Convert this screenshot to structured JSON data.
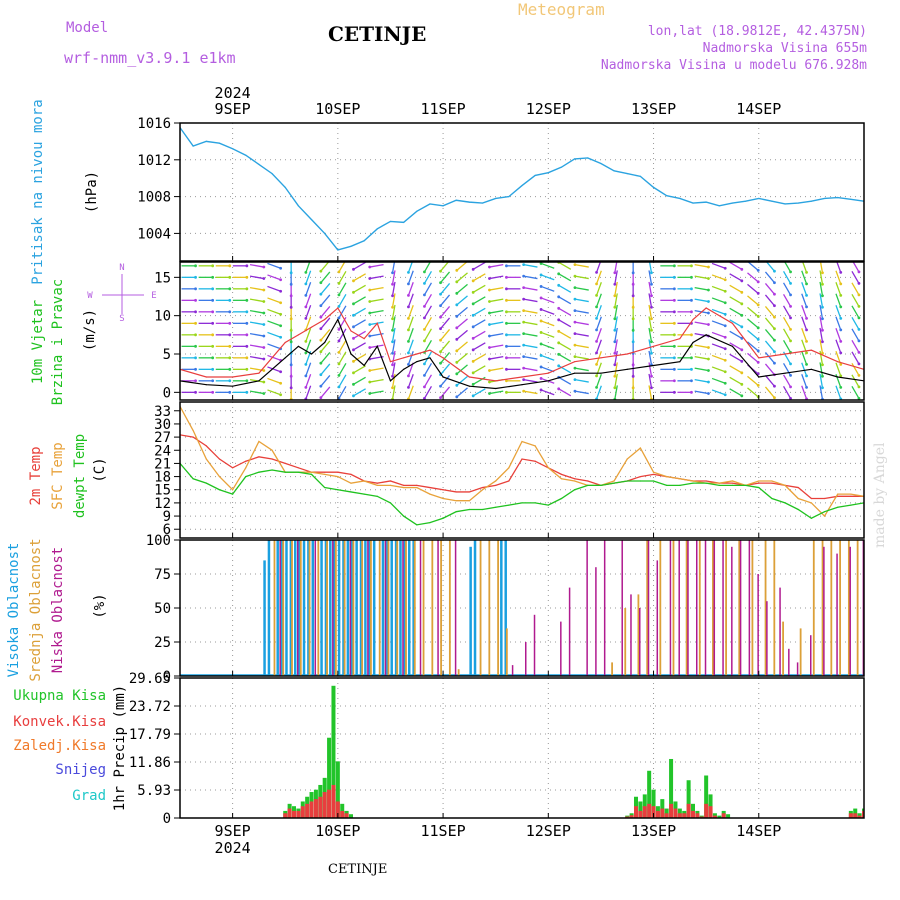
{
  "header": {
    "model_label": "Model",
    "model_name": "wrf-nmm_v3.9.1 e1km",
    "location": "CETINJE",
    "product": "Meteogram",
    "coords": "lon,lat (18.9812E, 42.4375N)",
    "elevation": "Nadmorska Visina 655m",
    "model_elevation": "Nadmorska Visina u modelu 676.928m"
  },
  "footer": {
    "location": "CETINJE",
    "watermark": "made by Angel"
  },
  "time_axis": {
    "year": "2024",
    "days": [
      "9SEP",
      "10SEP",
      "11SEP",
      "12SEP",
      "13SEP",
      "14SEP"
    ],
    "start_hour_before_first_day": 12,
    "hours_total": 156
  },
  "colors": {
    "pressure": "#2ba3e0",
    "wind_speed": "#000000",
    "gust": "#e83e3e",
    "t2m": "#e8403a",
    "tsfc": "#e8a23a",
    "dewpt": "#1fc21f",
    "cloud_high": "#1aa0e0",
    "cloud_mid": "#dca038",
    "cloud_low": "#b01a8f",
    "precip_total": "#22c42a",
    "precip_conv": "#e83e3e",
    "precip_frz": "#f07a2a",
    "snow": "#4a4adc",
    "graupel": "#1ec8c8"
  },
  "chart_data": [
    {
      "type": "line",
      "name": "pressure",
      "ylabel": [
        "Pritisak na nivou mora",
        "(hPa)"
      ],
      "yticks": [
        1004,
        1008,
        1012,
        1016
      ],
      "ylim": [
        1001,
        1016
      ],
      "x_hours": [
        0,
        3,
        6,
        9,
        12,
        15,
        18,
        21,
        24,
        27,
        30,
        33,
        36,
        39,
        42,
        45,
        48,
        51,
        54,
        57,
        60,
        63,
        66,
        69,
        72,
        75,
        78,
        81,
        84,
        87,
        90,
        93,
        96,
        99,
        102,
        105,
        108,
        111,
        114,
        117,
        120,
        123,
        126,
        129,
        132,
        135,
        138,
        141,
        144,
        147,
        150,
        153,
        156
      ],
      "values": [
        1015.5,
        1013.5,
        1014.0,
        1013.8,
        1013.2,
        1012.5,
        1011.5,
        1010.5,
        1009.0,
        1007.0,
        1005.5,
        1004.0,
        1002.2,
        1002.6,
        1003.2,
        1004.5,
        1005.3,
        1005.2,
        1006.4,
        1007.2,
        1007.0,
        1007.6,
        1007.4,
        1007.3,
        1007.8,
        1008.0,
        1009.2,
        1010.3,
        1010.6,
        1011.2,
        1012.1,
        1012.2,
        1011.6,
        1010.8,
        1010.5,
        1010.2,
        1009.0,
        1008.1,
        1007.8,
        1007.3,
        1007.4,
        1007.0,
        1007.3,
        1007.5,
        1007.8,
        1007.5,
        1007.2,
        1007.3,
        1007.5,
        1007.8,
        1007.9,
        1007.7,
        1007.5
      ]
    },
    {
      "type": "line",
      "name": "wind",
      "ylabel": [
        "10m Vjetar",
        "Brzina i Pravac",
        "(m/s)"
      ],
      "compass": [
        "N",
        "S",
        "W",
        "E"
      ],
      "yticks": [
        0,
        5,
        10,
        15
      ],
      "ylim": [
        -1,
        17
      ],
      "series": [
        {
          "key": "speed",
          "x_hours": [
            0,
            6,
            12,
            18,
            24,
            27,
            30,
            33,
            36,
            39,
            42,
            45,
            48,
            51,
            54,
            57,
            60,
            66,
            72,
            78,
            84,
            90,
            96,
            102,
            108,
            114,
            117,
            120,
            126,
            132,
            138,
            144,
            150,
            156
          ],
          "values": [
            1.5,
            1.0,
            0.8,
            1.5,
            4.5,
            6.0,
            5.0,
            6.5,
            9.5,
            5.0,
            3.5,
            6.0,
            1.5,
            3.0,
            4.0,
            4.5,
            2.0,
            0.8,
            0.5,
            1.0,
            1.5,
            2.5,
            2.5,
            3.0,
            3.5,
            4.0,
            6.5,
            7.5,
            6.0,
            2.0,
            2.5,
            3.0,
            2.0,
            1.5
          ]
        },
        {
          "key": "gust",
          "x_hours": [
            0,
            6,
            12,
            18,
            24,
            27,
            30,
            33,
            36,
            39,
            42,
            45,
            48,
            51,
            54,
            57,
            60,
            66,
            72,
            78,
            84,
            90,
            96,
            102,
            108,
            114,
            117,
            120,
            126,
            132,
            138,
            144,
            150,
            156
          ],
          "values": [
            3.0,
            2.0,
            2.0,
            2.5,
            6.5,
            7.5,
            8.5,
            9.5,
            11.0,
            8.0,
            7.0,
            9.0,
            4.0,
            4.5,
            5.0,
            5.5,
            4.5,
            2.0,
            1.5,
            2.0,
            2.5,
            4.0,
            4.5,
            5.0,
            6.0,
            7.0,
            9.5,
            11.0,
            9.0,
            4.5,
            5.0,
            5.5,
            4.0,
            3.0
          ]
        }
      ],
      "arrow_dirs_deg": [
        90,
        90,
        90,
        90,
        100,
        110,
        180,
        200,
        220,
        210,
        240,
        260,
        190,
        200,
        210,
        220,
        230,
        240,
        260,
        270,
        280,
        290,
        300,
        280,
        200,
        190,
        180,
        170,
        90,
        90,
        100,
        110,
        120,
        130,
        140,
        150,
        160,
        170,
        160,
        150
      ]
    },
    {
      "type": "line",
      "name": "temperature",
      "ylabel": [
        "2m Temp",
        "SFC Temp",
        "dewpt Temp",
        "(C)"
      ],
      "yticks": [
        6,
        9,
        12,
        15,
        18,
        21,
        24,
        27,
        30,
        33
      ],
      "ylim": [
        4,
        35
      ],
      "x_hours": [
        0,
        3,
        6,
        9,
        12,
        15,
        18,
        21,
        24,
        27,
        30,
        33,
        36,
        39,
        42,
        45,
        48,
        51,
        54,
        57,
        60,
        63,
        66,
        69,
        72,
        75,
        78,
        81,
        84,
        87,
        90,
        93,
        96,
        99,
        102,
        105,
        108,
        111,
        114,
        117,
        120,
        123,
        126,
        129,
        132,
        135,
        138,
        141,
        144,
        147,
        150,
        153,
        156
      ],
      "series": [
        {
          "key": "t2m",
          "values": [
            27.5,
            27.0,
            25.0,
            22.0,
            20.0,
            21.5,
            22.5,
            22.0,
            21.0,
            20.0,
            19.0,
            19.0,
            19.0,
            18.5,
            17.0,
            16.5,
            17.0,
            16.0,
            16.0,
            15.5,
            15.0,
            14.5,
            14.5,
            15.5,
            16.0,
            17.0,
            22.0,
            21.5,
            20.0,
            18.5,
            17.5,
            17.0,
            16.0,
            16.5,
            17.0,
            18.0,
            18.5,
            18.0,
            17.5,
            17.0,
            17.0,
            16.5,
            16.5,
            16.0,
            16.5,
            16.5,
            16.0,
            15.5,
            13.0,
            13.0,
            13.5,
            13.5,
            13.5
          ]
        },
        {
          "key": "tsfc",
          "values": [
            34.0,
            28.5,
            22.0,
            18.0,
            15.0,
            20.0,
            26.0,
            24.0,
            19.0,
            19.0,
            19.0,
            18.5,
            18.0,
            16.5,
            17.0,
            16.0,
            16.0,
            15.5,
            15.5,
            14.0,
            13.0,
            12.5,
            12.5,
            15.0,
            17.0,
            20.0,
            26.0,
            25.0,
            20.0,
            17.5,
            17.0,
            16.0,
            16.0,
            17.0,
            22.0,
            24.5,
            19.0,
            18.0,
            17.5,
            17.0,
            16.5,
            16.5,
            17.0,
            16.0,
            17.0,
            17.0,
            16.0,
            13.0,
            12.0,
            9.0,
            14.0,
            14.0,
            13.5
          ]
        },
        {
          "key": "dewpt",
          "values": [
            21.0,
            17.5,
            16.5,
            15.0,
            14.0,
            18.0,
            19.0,
            19.5,
            19.0,
            19.0,
            18.5,
            15.5,
            15.0,
            14.5,
            14.0,
            13.5,
            12.0,
            9.0,
            7.0,
            7.5,
            8.5,
            10.0,
            10.5,
            10.5,
            11.0,
            11.5,
            12.0,
            12.0,
            11.5,
            13.0,
            15.0,
            16.0,
            16.0,
            16.5,
            17.0,
            17.0,
            17.0,
            16.0,
            16.0,
            16.5,
            16.5,
            16.0,
            16.0,
            16.0,
            15.5,
            13.0,
            12.0,
            10.5,
            8.5,
            10.0,
            11.0,
            11.5,
            12.0
          ]
        }
      ]
    },
    {
      "type": "bar",
      "name": "cloud",
      "ylabel": [
        "Visoka Oblacnost",
        "Srednja Oblacnost",
        "Niska Oblacnost",
        "(%)"
      ],
      "yticks": [
        0,
        25,
        50,
        75,
        100
      ],
      "ylim": [
        0,
        100
      ],
      "series": [
        {
          "key": "high",
          "x_hours": [
            19,
            20,
            22,
            23,
            24,
            25,
            26,
            27,
            28,
            29,
            30,
            32,
            33,
            34,
            35,
            36,
            37,
            38,
            39,
            40,
            41,
            42,
            43,
            44,
            46,
            47,
            48,
            49,
            50,
            51,
            52,
            53,
            66,
            67,
            73,
            74
          ],
          "values": [
            85,
            100,
            100,
            100,
            100,
            100,
            100,
            100,
            100,
            100,
            100,
            100,
            100,
            100,
            100,
            100,
            100,
            100,
            100,
            100,
            100,
            100,
            100,
            100,
            100,
            100,
            100,
            100,
            100,
            100,
            100,
            100,
            95,
            100,
            100,
            100
          ]
        },
        {
          "key": "mid",
          "x_hours": [
            21,
            23,
            25,
            27,
            29,
            31,
            33,
            35,
            37,
            39,
            41,
            43,
            45,
            47,
            49,
            51,
            53,
            55,
            57,
            59,
            61,
            63,
            68,
            70,
            72,
            74,
            98,
            101,
            104,
            106,
            109,
            112,
            115,
            118,
            121,
            124,
            127,
            130,
            133,
            135,
            137,
            141,
            144,
            146,
            148,
            150,
            152,
            154,
            156
          ],
          "values": [
            100,
            100,
            100,
            100,
            100,
            100,
            100,
            100,
            100,
            100,
            100,
            100,
            100,
            100,
            100,
            100,
            100,
            100,
            100,
            100,
            100,
            5,
            100,
            100,
            100,
            35,
            10,
            50,
            60,
            100,
            100,
            100,
            100,
            100,
            100,
            100,
            100,
            100,
            100,
            100,
            40,
            35,
            100,
            100,
            100,
            100,
            100,
            100,
            100
          ]
        },
        {
          "key": "low",
          "x_hours": [
            22,
            26,
            30,
            34,
            38,
            42,
            46,
            50,
            54,
            58,
            62,
            75,
            78,
            80,
            86,
            88,
            92,
            94,
            96,
            100,
            102,
            104,
            106,
            108,
            111,
            113,
            115,
            117,
            119,
            121,
            123,
            125,
            127,
            129,
            131,
            133,
            136,
            138,
            140,
            143,
            146,
            149,
            152,
            155
          ],
          "values": [
            100,
            100,
            100,
            100,
            100,
            100,
            100,
            100,
            100,
            100,
            100,
            8,
            25,
            45,
            40,
            65,
            100,
            80,
            100,
            100,
            60,
            50,
            100,
            85,
            100,
            100,
            100,
            100,
            100,
            100,
            100,
            95,
            100,
            100,
            75,
            55,
            65,
            20,
            10,
            30,
            95,
            90,
            95,
            100
          ]
        }
      ]
    },
    {
      "type": "bar",
      "name": "precip",
      "ylabel": [
        "1hr Precip (mm)"
      ],
      "legend": [
        "Ukupna Kisa",
        "Konvek.Kisa",
        "Zaledj.Kisa",
        "Snijeg",
        "Grad"
      ],
      "yticks": [
        0,
        5.93,
        11.86,
        17.79,
        23.72,
        29.65
      ],
      "ylim": [
        0,
        29.65
      ],
      "series": [
        {
          "key": "total",
          "x_hours": [
            24,
            25,
            26,
            27,
            28,
            29,
            30,
            31,
            32,
            33,
            34,
            35,
            36,
            37,
            38,
            39,
            102,
            103,
            104,
            105,
            106,
            107,
            108,
            109,
            110,
            111,
            112,
            113,
            114,
            115,
            116,
            117,
            118,
            119,
            120,
            121,
            122,
            123,
            124,
            125,
            153,
            154,
            155,
            156
          ],
          "values": [
            1.5,
            3.0,
            2.5,
            2.0,
            3.5,
            4.5,
            5.5,
            6.0,
            7.0,
            8.5,
            17.0,
            28.0,
            12.0,
            3.0,
            1.5,
            0.8,
            0.5,
            1.0,
            4.5,
            3.5,
            5.0,
            10.0,
            6.0,
            2.5,
            4.0,
            2.0,
            12.5,
            3.5,
            2.0,
            1.5,
            8.0,
            3.0,
            1.5,
            0.5,
            9.0,
            5.0,
            1.0,
            0.5,
            1.5,
            0.8,
            1.5,
            2.0,
            1.0,
            2.0
          ]
        },
        {
          "key": "conv",
          "x_hours": [
            24,
            25,
            26,
            27,
            28,
            29,
            30,
            31,
            32,
            33,
            34,
            35,
            36,
            37,
            38,
            102,
            103,
            104,
            105,
            106,
            107,
            108,
            109,
            110,
            111,
            112,
            113,
            114,
            115,
            116,
            117,
            118,
            119,
            120,
            121,
            122,
            124,
            153,
            154,
            155,
            156
          ],
          "values": [
            1.0,
            2.0,
            1.5,
            1.5,
            2.5,
            3.0,
            3.5,
            4.0,
            4.5,
            5.5,
            6.0,
            7.0,
            3.5,
            1.5,
            1.0,
            0.3,
            0.6,
            2.5,
            1.5,
            2.5,
            3.0,
            2.5,
            1.5,
            2.0,
            1.0,
            3.0,
            2.0,
            1.0,
            1.0,
            3.0,
            1.5,
            1.0,
            0.3,
            3.0,
            2.5,
            0.5,
            1.0,
            1.0,
            1.0,
            0.5,
            1.5
          ]
        }
      ]
    }
  ]
}
